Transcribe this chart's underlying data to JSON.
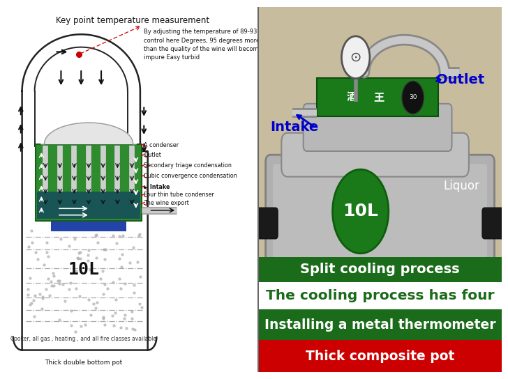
{
  "bg_color": "#ffffff",
  "title_text": "Key point temperature measurement",
  "title_fontsize": 8.5,
  "annotation_text": "By adjusting the temperature of 89-93 fire\ncontrol here Degrees, 95 degrees more\nthan the quality of the wine will become\nimpure Easy turbid",
  "annotation_fontsize": 6.0,
  "label_10L_left": "10L",
  "bottom_text1": "Cooker, all gas , heating , and all fire classes available",
  "bottom_text2": "Thick double bottom pot",
  "green_bar1_text": "Split cooling process",
  "green_bar1_color": "#1a6b1a",
  "green_bar2_text": "The cooling process has four",
  "green_bar2_color": "#ffffff",
  "green_bar2_text_color": "#1a6b1a",
  "red_bar1_text": "Installing a metal thermometer",
  "red_bar1_color": "#1a6b1a",
  "red_bar1_text_color": "#ffffff",
  "red_bar2_text": "Thick composite pot",
  "red_bar2_color": "#cc0000",
  "red_bar2_text_color": "#ffffff"
}
